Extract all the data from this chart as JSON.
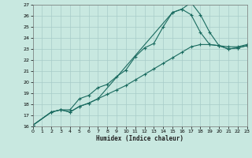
{
  "xlabel": "Humidex (Indice chaleur)",
  "xlim": [
    0,
    23
  ],
  "ylim": [
    16,
    27
  ],
  "xticks": [
    0,
    1,
    2,
    3,
    4,
    5,
    6,
    7,
    8,
    9,
    10,
    11,
    12,
    13,
    14,
    15,
    16,
    17,
    18,
    19,
    20,
    21,
    22,
    23
  ],
  "yticks": [
    16,
    17,
    18,
    19,
    20,
    21,
    22,
    23,
    24,
    25,
    26,
    27
  ],
  "background_color": "#c8e8e0",
  "grid_color": "#a8ccc8",
  "line_color": "#1a6b60",
  "lines": [
    {
      "x": [
        0,
        2,
        3,
        4,
        5,
        6,
        7,
        8,
        9,
        10,
        11,
        12,
        13,
        14,
        15,
        16,
        17,
        18,
        19,
        20,
        21,
        22,
        23
      ],
      "y": [
        16.1,
        17.3,
        17.5,
        17.5,
        18.5,
        18.8,
        19.5,
        19.8,
        20.5,
        21.1,
        22.3,
        23.1,
        23.5,
        25.0,
        26.3,
        26.6,
        27.2,
        26.1,
        24.5,
        23.3,
        23.0,
        23.1,
        23.3
      ]
    },
    {
      "x": [
        0,
        2,
        3,
        4,
        5,
        6,
        7,
        8,
        9,
        10,
        11,
        12,
        13,
        14,
        15,
        16,
        17,
        18,
        19,
        20,
        21,
        22,
        23
      ],
      "y": [
        16.1,
        17.3,
        17.5,
        17.3,
        17.8,
        18.1,
        18.5,
        18.9,
        19.3,
        19.7,
        20.2,
        20.7,
        21.2,
        21.7,
        22.2,
        22.7,
        23.2,
        23.4,
        23.4,
        23.3,
        23.2,
        23.2,
        23.4
      ]
    },
    {
      "x": [
        0,
        2,
        3,
        4,
        5,
        6,
        7,
        15,
        16,
        17,
        18,
        19,
        20,
        21,
        22,
        23
      ],
      "y": [
        16.1,
        17.3,
        17.5,
        17.3,
        17.8,
        18.1,
        18.5,
        26.3,
        26.6,
        26.1,
        24.5,
        23.4,
        23.3,
        23.0,
        23.1,
        23.3
      ]
    }
  ]
}
